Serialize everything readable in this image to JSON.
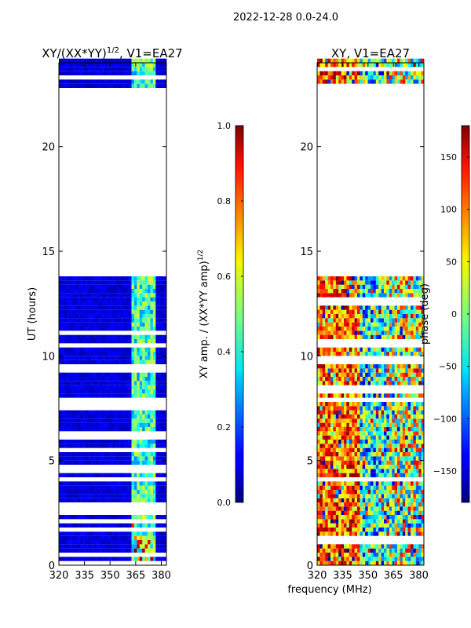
{
  "suptitle": "2022-12-28 0.0-24.0",
  "shared_xlabel": "frequency (MHz)",
  "chart_data": [
    {
      "type": "heatmap",
      "title": "XY/(XX*YY)^{1/2}, V1=EA27",
      "title_main": "XY/(XX*YY)",
      "title_exp": "1/2",
      "title_tail": ", V1=EA27",
      "xlabel": "frequency (MHz)",
      "ylabel": "UT (hours)",
      "xlim": [
        320,
        383
      ],
      "ylim": [
        0,
        24
      ],
      "xticks": [
        320,
        335,
        350,
        365,
        380
      ],
      "yticks": [
        0,
        5,
        10,
        15,
        20
      ],
      "data_gap_hours": [
        13.75,
        22.85
      ],
      "colorbar": {
        "label": "XY amp. / (XX*YY amp)^{1/2}",
        "label_main": "XY amp. / (XX*YY amp)",
        "label_exp": "1/2",
        "range": [
          0.0,
          1.0
        ],
        "ticks": [
          "0.0",
          "0.2",
          "0.4",
          "0.6",
          "0.8",
          "1.0"
        ]
      }
    },
    {
      "type": "heatmap",
      "title": "XY, V1=EA27",
      "xlabel": "frequency (MHz)",
      "ylabel": "",
      "xlim": [
        320,
        383
      ],
      "ylim": [
        0,
        24
      ],
      "xticks": [
        320,
        335,
        350,
        365,
        380
      ],
      "yticks": [
        0,
        5,
        10,
        15,
        20
      ],
      "data_gap_hours": [
        13.75,
        22.85
      ],
      "colorbar": {
        "label": "phase (deg)",
        "range": [
          -180,
          180
        ],
        "ticks": [
          "−150",
          "−100",
          "−50",
          "0",
          "50",
          "100",
          "150"
        ]
      }
    }
  ]
}
